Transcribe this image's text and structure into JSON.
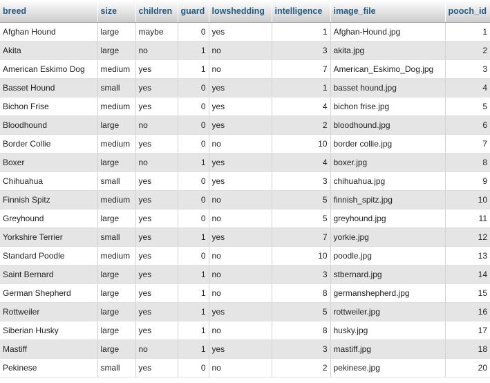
{
  "columns": [
    {
      "key": "breed",
      "label": "breed",
      "numeric": false
    },
    {
      "key": "size",
      "label": "size",
      "numeric": false
    },
    {
      "key": "children",
      "label": "children",
      "numeric": false
    },
    {
      "key": "guard",
      "label": "guard",
      "numeric": true
    },
    {
      "key": "lowshedding",
      "label": "lowshedding",
      "numeric": false
    },
    {
      "key": "intelligence",
      "label": "intelligence",
      "numeric": true
    },
    {
      "key": "image_file",
      "label": "image_file",
      "numeric": false
    },
    {
      "key": "pooch_id",
      "label": "pooch_id",
      "numeric": true
    }
  ],
  "rows": [
    {
      "breed": "Afghan Hound",
      "size": "large",
      "children": "maybe",
      "guard": "0",
      "lowshedding": "yes",
      "intelligence": "1",
      "image_file": "Afghan-Hound.jpg",
      "pooch_id": "1"
    },
    {
      "breed": "Akita",
      "size": "large",
      "children": "no",
      "guard": "1",
      "lowshedding": "no",
      "intelligence": "3",
      "image_file": "akita.jpg",
      "pooch_id": "2"
    },
    {
      "breed": "American Eskimo Dog",
      "size": "medium",
      "children": "yes",
      "guard": "1",
      "lowshedding": "no",
      "intelligence": "7",
      "image_file": "American_Eskimo_Dog.jpg",
      "pooch_id": "3"
    },
    {
      "breed": "Basset Hound",
      "size": "small",
      "children": "yes",
      "guard": "0",
      "lowshedding": "yes",
      "intelligence": "1",
      "image_file": "basset hound.jpg",
      "pooch_id": "4"
    },
    {
      "breed": "Bichon Frise",
      "size": "medium",
      "children": "yes",
      "guard": "0",
      "lowshedding": "yes",
      "intelligence": "4",
      "image_file": "bichon frise.jpg",
      "pooch_id": "5"
    },
    {
      "breed": "Bloodhound",
      "size": "large",
      "children": "no",
      "guard": "0",
      "lowshedding": "yes",
      "intelligence": "2",
      "image_file": "bloodhound.jpg",
      "pooch_id": "6"
    },
    {
      "breed": "Border Collie",
      "size": "medium",
      "children": "yes",
      "guard": "0",
      "lowshedding": "no",
      "intelligence": "10",
      "image_file": "border collie.jpg",
      "pooch_id": "7"
    },
    {
      "breed": "Boxer",
      "size": "large",
      "children": "no",
      "guard": "1",
      "lowshedding": "yes",
      "intelligence": "4",
      "image_file": "boxer.jpg",
      "pooch_id": "8"
    },
    {
      "breed": "Chihuahua",
      "size": "small",
      "children": "yes",
      "guard": "0",
      "lowshedding": "yes",
      "intelligence": "3",
      "image_file": "chihuahua.jpg",
      "pooch_id": "9"
    },
    {
      "breed": "Finnish Spitz",
      "size": "medium",
      "children": "yes",
      "guard": "0",
      "lowshedding": "no",
      "intelligence": "5",
      "image_file": "finnish_spitz.jpg",
      "pooch_id": "10"
    },
    {
      "breed": "Greyhound",
      "size": "large",
      "children": "yes",
      "guard": "0",
      "lowshedding": "no",
      "intelligence": "5",
      "image_file": "greyhound.jpg",
      "pooch_id": "11"
    },
    {
      "breed": "Yorkshire Terrier",
      "size": "small",
      "children": "yes",
      "guard": "1",
      "lowshedding": "yes",
      "intelligence": "7",
      "image_file": "yorkie.jpg",
      "pooch_id": "12"
    },
    {
      "breed": "Standard Poodle",
      "size": "medium",
      "children": "yes",
      "guard": "0",
      "lowshedding": "no",
      "intelligence": "10",
      "image_file": "poodle.jpg",
      "pooch_id": "13"
    },
    {
      "breed": "Saint Bernard",
      "size": "large",
      "children": "yes",
      "guard": "1",
      "lowshedding": "no",
      "intelligence": "3",
      "image_file": "stbernard.jpg",
      "pooch_id": "14"
    },
    {
      "breed": "German Shepherd",
      "size": "large",
      "children": "yes",
      "guard": "1",
      "lowshedding": "no",
      "intelligence": "8",
      "image_file": "germanshepherd.jpg",
      "pooch_id": "15"
    },
    {
      "breed": "Rottweiler",
      "size": "large",
      "children": "yes",
      "guard": "1",
      "lowshedding": "yes",
      "intelligence": "5",
      "image_file": "rottweiler.jpg",
      "pooch_id": "16"
    },
    {
      "breed": "Siberian Husky",
      "size": "large",
      "children": "yes",
      "guard": "1",
      "lowshedding": "no",
      "intelligence": "8",
      "image_file": "husky.jpg",
      "pooch_id": "17"
    },
    {
      "breed": "Mastiff",
      "size": "large",
      "children": "no",
      "guard": "1",
      "lowshedding": "yes",
      "intelligence": "3",
      "image_file": "mastiff.jpg",
      "pooch_id": "18"
    },
    {
      "breed": "Pekinese",
      "size": "small",
      "children": "yes",
      "guard": "0",
      "lowshedding": "no",
      "intelligence": "2",
      "image_file": "pekinese.jpg",
      "pooch_id": "20"
    }
  ]
}
